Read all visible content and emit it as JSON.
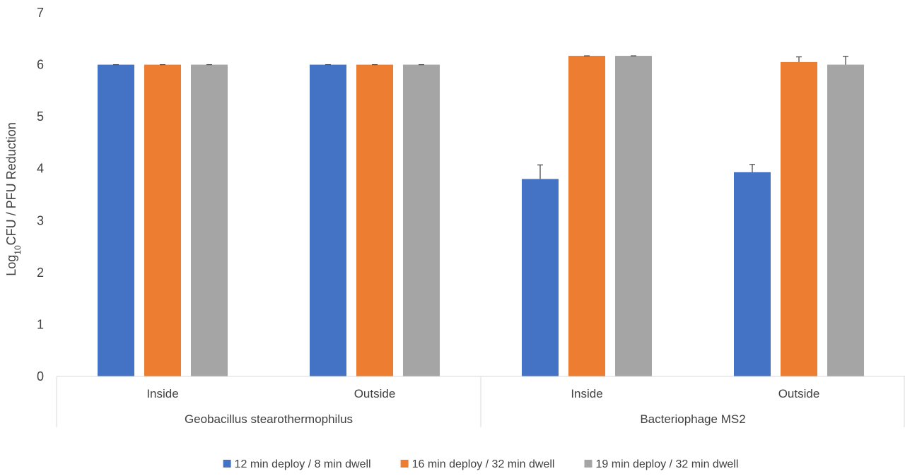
{
  "chart_data": {
    "type": "bar",
    "title": "",
    "ylabel_main": "Log",
    "ylabel_sub": "10",
    "ylabel_rest": "CFU / PFU Reduction",
    "ylim": [
      0,
      7
    ],
    "yticks": [
      0,
      1,
      2,
      3,
      4,
      5,
      6,
      7
    ],
    "grid": false,
    "legend_position": "bottom",
    "groups": [
      {
        "name": "Geobacillus stearothermophilus",
        "categories": [
          "Inside",
          "Outside"
        ]
      },
      {
        "name": "Bacteriophage MS2",
        "categories": [
          "Inside",
          "Outside"
        ]
      }
    ],
    "categories": [
      "Inside",
      "Outside",
      "Inside",
      "Outside"
    ],
    "series": [
      {
        "name": "12 min deploy / 8 min dwell",
        "color": "#4472C4",
        "values": [
          6.0,
          6.0,
          3.8,
          3.93
        ],
        "errors": [
          0.0,
          0.0,
          0.27,
          0.15
        ]
      },
      {
        "name": "16 min deploy / 32 min dwell",
        "color": "#ED7D31",
        "values": [
          6.0,
          6.0,
          6.17,
          6.05
        ],
        "errors": [
          0.0,
          0.0,
          0.0,
          0.1
        ]
      },
      {
        "name": "19 min deploy / 32 min dwell",
        "color": "#A5A5A5",
        "values": [
          6.0,
          6.0,
          6.17,
          6.0
        ],
        "errors": [
          0.0,
          0.0,
          0.0,
          0.16
        ]
      }
    ]
  }
}
